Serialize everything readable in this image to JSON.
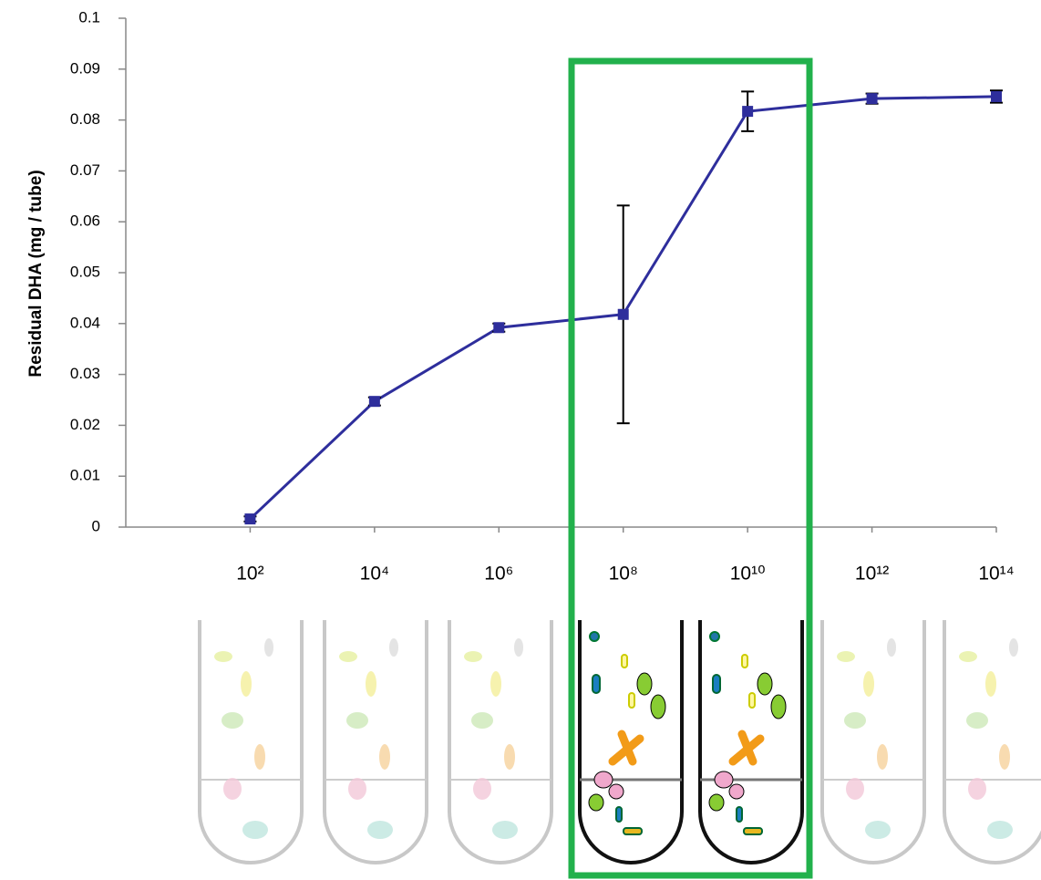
{
  "chart_data": {
    "type": "line",
    "y_label": "Residual DHA (mg / tube)",
    "x": [
      100,
      10000,
      1000000,
      100000000,
      10000000000,
      1000000000000,
      100000000000000
    ],
    "xscale": "log",
    "xlim": [
      1,
      100000000000000
    ],
    "xticks": [
      {
        "value": 100,
        "label": "10²"
      },
      {
        "value": 10000,
        "label": "10⁴"
      },
      {
        "value": 1000000,
        "label": "10⁶"
      },
      {
        "value": 100000000,
        "label": "10⁸"
      },
      {
        "value": 10000000000,
        "label": "10¹⁰"
      },
      {
        "value": 1000000000000,
        "label": "10¹²"
      },
      {
        "value": 100000000000000,
        "label": "10¹⁴"
      }
    ],
    "ylim": [
      0,
      0.1
    ],
    "yticks": [
      0,
      0.01,
      0.02,
      0.03,
      0.04,
      0.05,
      0.06,
      0.07,
      0.08,
      0.09,
      0.1
    ],
    "series": [
      {
        "color": "#2e2e9c",
        "error_color": "#000000",
        "values": [
          0.0016,
          0.0247,
          0.0392,
          0.0418,
          0.0817,
          0.0842,
          0.0846
        ],
        "errors": [
          0.0005,
          0.0008,
          0.0008,
          0.0214,
          0.0039,
          0.001,
          0.0012
        ]
      }
    ]
  }
}
